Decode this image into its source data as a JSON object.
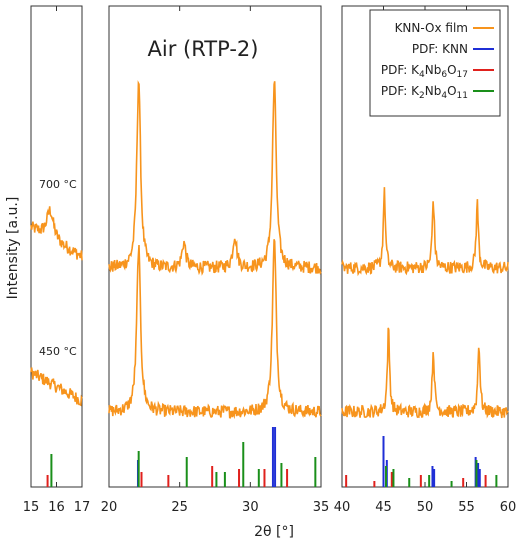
{
  "chart_data": {
    "type": "line",
    "title": "Air (RTP-2)",
    "xlabel": "2θ [°]",
    "ylabel": "Intensity [a.u.]",
    "panels": [
      {
        "id": "p1",
        "xlim": [
          15,
          17
        ],
        "ticks": [
          "15",
          "16",
          "17"
        ]
      },
      {
        "id": "p2",
        "xlim": [
          20,
          35
        ],
        "ticks": [
          "20",
          "25",
          "30",
          "35"
        ]
      },
      {
        "id": "p3",
        "xlim": [
          40,
          60
        ],
        "ticks": [
          "40",
          "45",
          "50",
          "55",
          "60"
        ]
      }
    ],
    "temperature_labels": [
      "700 °C",
      "450 °C"
    ],
    "legend": [
      {
        "text": "KNN-Ox film",
        "color": "#f7941d"
      },
      {
        "text": "PDF: KNN",
        "color": "#1f2fd6"
      },
      {
        "text": "PDF: K4Nb6O17",
        "color": "#e0211d"
      },
      {
        "text": "PDF: K2Nb4O11",
        "color": "#1a8f1a"
      }
    ],
    "series": [
      {
        "name": "700 °C",
        "peaks": [
          [
            15.75,
            1.6
          ],
          [
            22.1,
            10.5
          ],
          [
            25.3,
            1.4
          ],
          [
            28.9,
            1.8
          ],
          [
            31.7,
            10.4
          ],
          [
            45.1,
            4.2
          ],
          [
            51.0,
            3.8
          ],
          [
            56.3,
            3.6
          ]
        ]
      },
      {
        "name": "450 °C",
        "peaks": [
          [
            22.1,
            9.2
          ],
          [
            31.7,
            9.6
          ],
          [
            45.6,
            4.6
          ],
          [
            51.0,
            3.4
          ],
          [
            56.5,
            3.8
          ]
        ]
      }
    ],
    "reference_lines": {
      "PDF: KNN": [
        [
          22.05,
          0.45
        ],
        [
          31.6,
          1.0
        ],
        [
          31.75,
          1.0
        ],
        [
          45.0,
          0.85
        ],
        [
          45.4,
          0.45
        ],
        [
          50.9,
          0.35
        ],
        [
          51.1,
          0.3
        ],
        [
          56.1,
          0.5
        ],
        [
          56.4,
          0.4
        ],
        [
          56.6,
          0.3
        ]
      ],
      "PDF: K4Nb6O17": [
        [
          15.65,
          0.2
        ],
        [
          22.3,
          0.25
        ],
        [
          24.2,
          0.2
        ],
        [
          27.3,
          0.35
        ],
        [
          29.2,
          0.3
        ],
        [
          31.0,
          0.3
        ],
        [
          32.6,
          0.3
        ],
        [
          40.5,
          0.2
        ],
        [
          43.9,
          0.1
        ],
        [
          46.0,
          0.25
        ],
        [
          49.5,
          0.2
        ],
        [
          54.6,
          0.15
        ],
        [
          57.3,
          0.2
        ]
      ],
      "PDF: K2Nb4O11": [
        [
          15.8,
          0.55
        ],
        [
          22.1,
          0.6
        ],
        [
          25.5,
          0.5
        ],
        [
          27.6,
          0.25
        ],
        [
          28.2,
          0.25
        ],
        [
          29.5,
          0.75
        ],
        [
          30.6,
          0.3
        ],
        [
          32.2,
          0.4
        ],
        [
          34.6,
          0.5
        ],
        [
          45.3,
          0.35
        ],
        [
          46.2,
          0.3
        ],
        [
          48.1,
          0.15
        ],
        [
          50.5,
          0.2
        ],
        [
          53.2,
          0.1
        ],
        [
          56.2,
          0.45
        ],
        [
          58.6,
          0.2
        ]
      ]
    }
  }
}
